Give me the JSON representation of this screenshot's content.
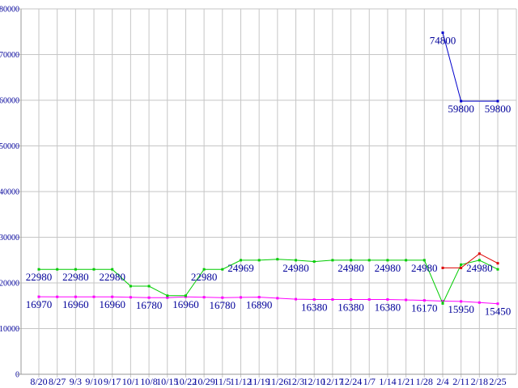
{
  "chart_data": {
    "type": "line",
    "title": "",
    "xlabel": "",
    "ylabel": "",
    "ylim": [
      0,
      80000
    ],
    "y_tick_step": 10000,
    "y_tick_labels": [
      "0",
      "10000",
      "20000",
      "30000",
      "40000",
      "50000",
      "60000",
      "70000",
      "80000"
    ],
    "grid": true,
    "legend": "none",
    "background_color": "#ffffff",
    "grid_color": "#c6c6c6",
    "axis_color": "#999999",
    "label_color": "#000099",
    "x_labels": [
      "8/20",
      "8/27",
      "9/3",
      "9/10",
      "9/17",
      "10/1",
      "10/8",
      "10/15",
      "10/22",
      "10/29",
      "11/5",
      "11/12",
      "11/19",
      "11/26",
      "12/3",
      "12/10",
      "12/17",
      "12/24",
      "1/7",
      "1/14",
      "1/21",
      "1/28",
      "2/4",
      "2/11",
      "2/18",
      "2/25"
    ],
    "series": [
      {
        "name": "magenta-line",
        "color": "#ff00ff",
        "values": [
          16970,
          16960,
          16960,
          16960,
          16960,
          16850,
          16780,
          16780,
          16960,
          16870,
          16780,
          16840,
          16890,
          16650,
          16450,
          16380,
          16380,
          16380,
          16380,
          16380,
          16280,
          16170,
          16020,
          15950,
          15700,
          15450
        ],
        "point_labels": {
          "0": "16970",
          "2": "16960",
          "4": "16960",
          "6": "16780",
          "8": "16960",
          "10": "16780",
          "12": "16890",
          "15": "16380",
          "17": "16380",
          "19": "16380",
          "21": "16170",
          "23": "15950",
          "25": "15450"
        }
      },
      {
        "name": "green-line",
        "color": "#00cc00",
        "values": [
          22980,
          22980,
          22980,
          22980,
          22980,
          19300,
          19300,
          17200,
          17200,
          22980,
          22980,
          24969,
          24969,
          25180,
          24980,
          24680,
          24980,
          24980,
          24980,
          24980,
          24980,
          24980,
          15500,
          24000,
          24980,
          22980
        ],
        "point_labels": {
          "0": "22980",
          "2": "22980",
          "4": "22980",
          "9": "22980",
          "11": "24969",
          "14": "24980",
          "17": "24980",
          "19": "24980",
          "21": "24980",
          "24": "24980"
        }
      },
      {
        "name": "red-line",
        "color": "#dd0000",
        "values": [
          null,
          null,
          null,
          null,
          null,
          null,
          null,
          null,
          null,
          null,
          null,
          null,
          null,
          null,
          null,
          null,
          null,
          null,
          null,
          null,
          null,
          null,
          23300,
          23300,
          26400,
          24300
        ],
        "point_labels": {}
      },
      {
        "name": "blue-line",
        "color": "#0000cc",
        "values": [
          null,
          null,
          null,
          null,
          null,
          null,
          null,
          null,
          null,
          null,
          null,
          null,
          null,
          null,
          null,
          null,
          null,
          null,
          null,
          null,
          null,
          null,
          74800,
          59800,
          null,
          59800
        ],
        "point_labels": {
          "22": "74800",
          "23": "59800",
          "25": "59800"
        }
      }
    ]
  }
}
